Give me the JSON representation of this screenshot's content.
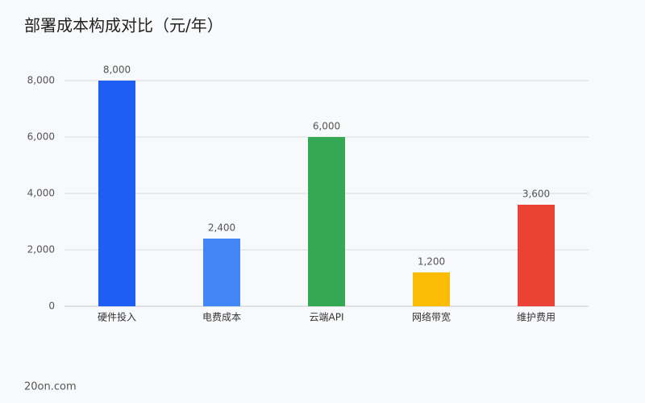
{
  "chart_data": {
    "type": "bar",
    "title": "部署成本构成对比（元/年）",
    "categories": [
      "硬件投入",
      "电费成本",
      "云端API",
      "网络带宽",
      "维护费用"
    ],
    "values": [
      8000,
      2400,
      6000,
      1200,
      3600
    ],
    "value_labels": [
      "8,000",
      "2,400",
      "6,000",
      "1,200",
      "3,600"
    ],
    "colors": [
      "#1f5ef5",
      "#4285f4",
      "#34a853",
      "#fbbc04",
      "#ea4335"
    ],
    "ylim": [
      0,
      8000
    ],
    "yticks": [
      0,
      {
        "value": 2000,
        "label": "2,000"
      },
      {
        "value": 4000,
        "label": "4,000"
      },
      {
        "value": 6000,
        "label": "6,000"
      },
      {
        "value": 8000,
        "label": "8,000"
      }
    ],
    "grid": true
  },
  "footer": "20on.com"
}
